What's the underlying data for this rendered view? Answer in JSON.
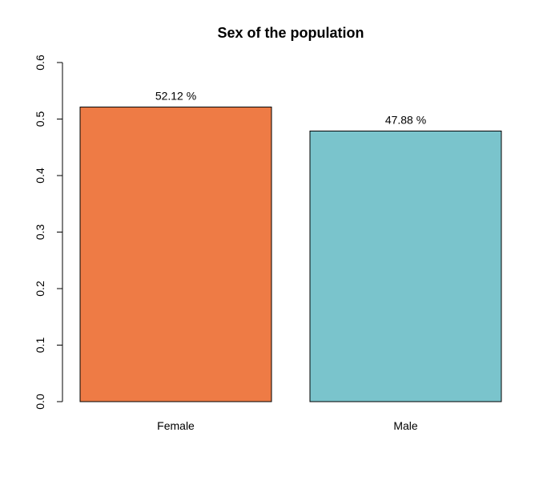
{
  "chart_data": {
    "type": "bar",
    "title": "Sex of the population",
    "xlabel": "",
    "ylabel": "",
    "categories": [
      "Female",
      "Male"
    ],
    "values": [
      0.5212,
      0.4788
    ],
    "data_labels": [
      "52.12 %",
      "47.88 %"
    ],
    "colors": [
      "#EE7B45",
      "#7AC4CC"
    ],
    "ylim": [
      0,
      0.6
    ],
    "yticks": [
      "0.0",
      "0.1",
      "0.2",
      "0.3",
      "0.4",
      "0.5",
      "0.6"
    ],
    "grid": false,
    "legend": "none"
  }
}
